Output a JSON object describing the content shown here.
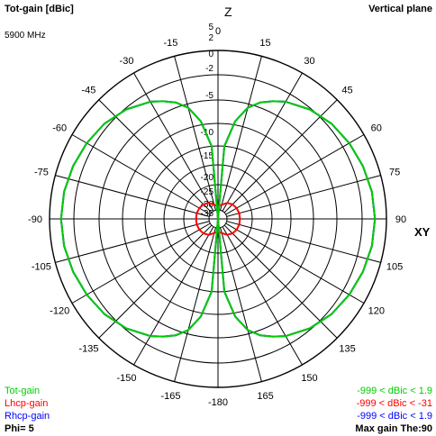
{
  "header": {
    "title": "Tot-gain [dBic]",
    "plane": "Vertical plane",
    "frequency": "5900 MHz"
  },
  "axis_labels": {
    "top": "Z",
    "right": "XY"
  },
  "footer": {
    "legend": [
      {
        "name": "Tot-gain",
        "color": "#00cc00",
        "range": "-999 < dBic < 1.9"
      },
      {
        "name": "Lhcp-gain",
        "color": "#ff0000",
        "range": "-999 < dBic < -31"
      },
      {
        "name": "Rhcp-gain",
        "color": "#0000ff",
        "range": "-999 < dBic < 1.9"
      }
    ],
    "phi": "Phi= 5",
    "max_gain": "Max gain The:90"
  },
  "chart_data": {
    "type": "polar",
    "angle_tick_labels": [
      "0",
      "15",
      "30",
      "45",
      "60",
      "75",
      "90",
      "105",
      "120",
      "135",
      "150",
      "165",
      "-180",
      "-165",
      "-150",
      "-135",
      "-120",
      "-105",
      "-90",
      "-75",
      "-60",
      "-45",
      "-30",
      "-15"
    ],
    "radial_tick_labels": [
      "5",
      "2",
      "0",
      "-2",
      "-5",
      "-10",
      "-15",
      "-20",
      "-25",
      "-30",
      "-35"
    ],
    "rmin_dbic": -40,
    "rmax_dbic": 5,
    "angle_step_deg": 15,
    "grid": true,
    "series": [
      {
        "name": "Tot-gain",
        "color": "#00cc00",
        "theta_deg": [
          0,
          5,
          10,
          15,
          20,
          25,
          30,
          40,
          50,
          60,
          70,
          80,
          90,
          100,
          110,
          120,
          130,
          140,
          150,
          155,
          160,
          165,
          170,
          175,
          180
        ],
        "gain_dbic": [
          -40,
          -15.0,
          -9.2,
          -5.8,
          -3.8,
          -2.4,
          -1.4,
          -0.2,
          0.6,
          1.1,
          1.5,
          1.8,
          1.9,
          1.8,
          1.5,
          1.1,
          0.6,
          -0.2,
          -1.4,
          -2.4,
          -3.8,
          -5.8,
          -9.2,
          -15.0,
          -40
        ]
      },
      {
        "name": "Lhcp-gain",
        "color": "#ff0000",
        "theta_deg": [
          0,
          15,
          30,
          45,
          60,
          75,
          90,
          105,
          120,
          135,
          150,
          165,
          180
        ],
        "gain_dbic": [
          -36,
          -35.5,
          -33.5,
          -32.0,
          -31.3,
          -31.0,
          -31.0,
          -31.0,
          -31.3,
          -32.0,
          -33.5,
          -35.5,
          -36
        ]
      },
      {
        "name": "Rhcp-gain",
        "color": "#0000ff",
        "theta_deg": [
          0,
          5,
          10,
          15,
          20,
          25,
          30,
          40,
          50,
          60,
          70,
          80,
          90,
          100,
          110,
          120,
          130,
          140,
          150,
          155,
          160,
          165,
          170,
          175,
          180
        ],
        "gain_dbic": [
          -40,
          -15.0,
          -9.2,
          -5.8,
          -3.8,
          -2.4,
          -1.4,
          -0.2,
          0.6,
          1.1,
          1.5,
          1.8,
          1.9,
          1.8,
          1.5,
          1.1,
          0.6,
          -0.2,
          -1.4,
          -2.4,
          -3.8,
          -5.8,
          -9.2,
          -15.0,
          -40
        ]
      }
    ]
  }
}
